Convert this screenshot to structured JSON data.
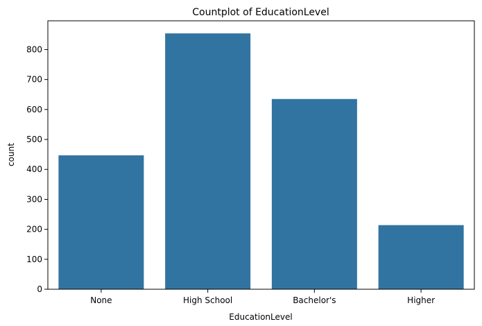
{
  "chart_data": {
    "type": "bar",
    "title": "Countplot of EducationLevel",
    "xlabel": "EducationLevel",
    "ylabel": "count",
    "categories": [
      "None",
      "High School",
      "Bachelor's",
      "Higher"
    ],
    "values": [
      447,
      854,
      635,
      214
    ],
    "ylim": [
      0,
      896
    ],
    "yticks": [
      0,
      100,
      200,
      300,
      400,
      500,
      600,
      700,
      800
    ],
    "grid": false,
    "legend": "none",
    "bar_color": "#3274a1"
  }
}
